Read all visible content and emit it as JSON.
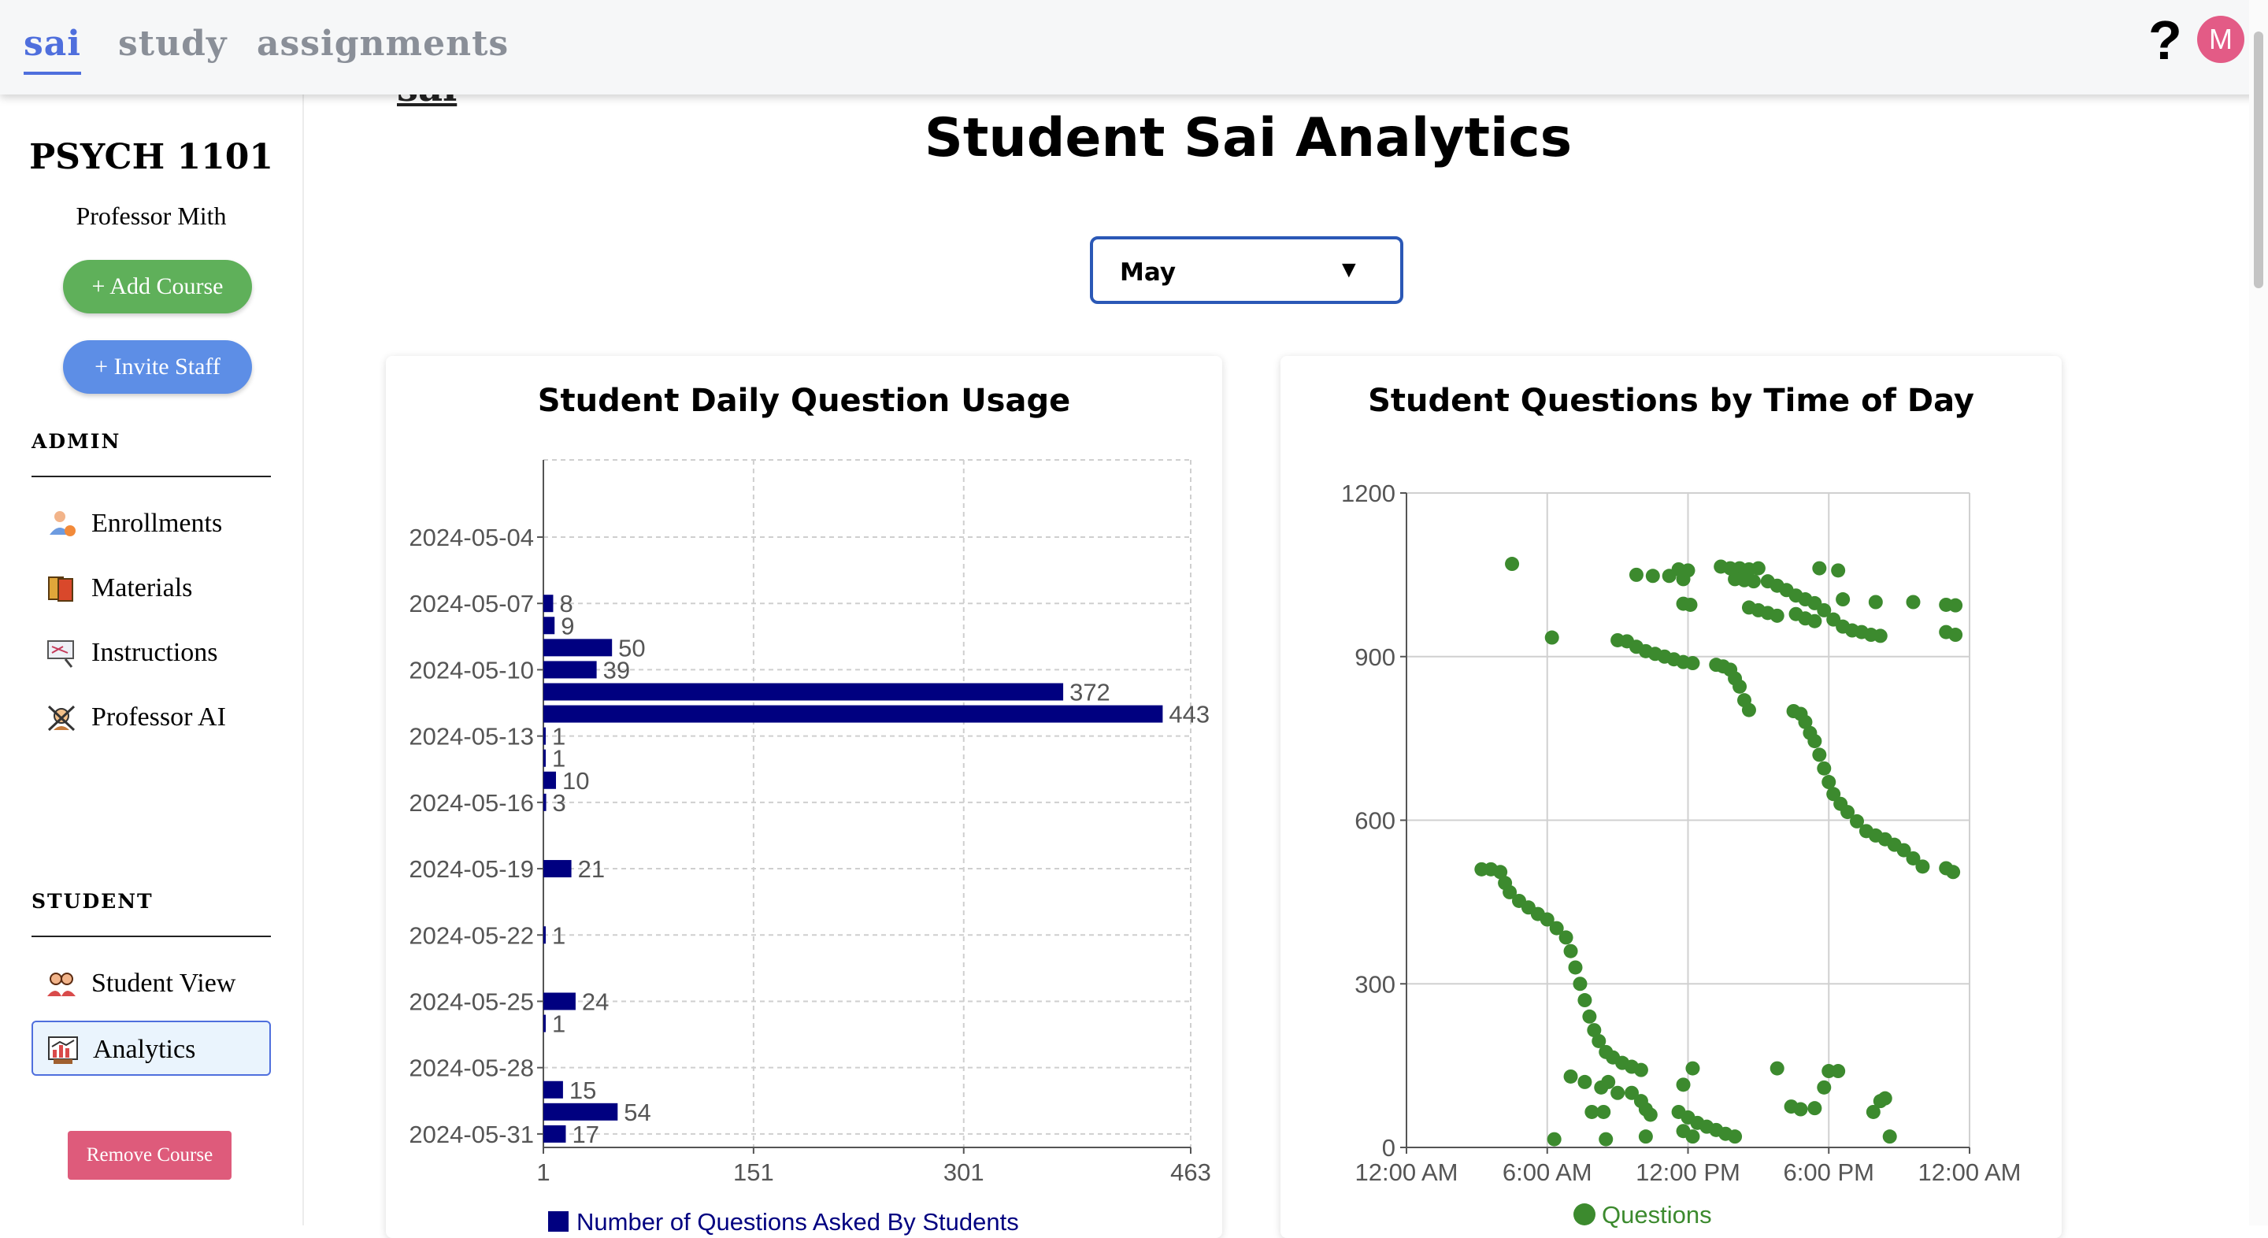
{
  "topnav": {
    "tabs": [
      {
        "label": "sai",
        "active": true
      },
      {
        "label": "study",
        "active": false
      },
      {
        "label": "assignments",
        "active": false
      }
    ],
    "help_icon": "question-mark-icon",
    "avatar_initial": "M"
  },
  "sidebar": {
    "course_title": "PSYCH 1101",
    "professor": "Professor Mith",
    "add_course_label": "+ Add Course",
    "invite_staff_label": "+ Invite Staff",
    "admin_label": "ADMIN",
    "admin_items": [
      {
        "label": "Enrollments",
        "icon": "enrollments-icon"
      },
      {
        "label": "Materials",
        "icon": "materials-icon"
      },
      {
        "label": "Instructions",
        "icon": "instructions-icon"
      },
      {
        "label": "Professor AI",
        "icon": "professor-ai-icon"
      }
    ],
    "student_label": "STUDENT",
    "student_items": [
      {
        "label": "Student View",
        "icon": "student-view-icon",
        "active": false
      },
      {
        "label": "Analytics",
        "icon": "analytics-icon",
        "active": true
      }
    ],
    "remove_course_label": "Remove Course"
  },
  "main": {
    "header_peek": "sai",
    "title": "Student Sai Analytics",
    "month_select": {
      "value": "May"
    }
  },
  "colors": {
    "accent": "#4f6fdd",
    "bar": "#000080",
    "scatter": "#3c8a2e",
    "add": "#5fb05a",
    "invite": "#5d8ee6",
    "remove": "#de5b7b"
  },
  "chart_data": [
    {
      "type": "bar",
      "orientation": "horizontal",
      "title": "Student Daily Question Usage",
      "categories": [
        "2024-05-04",
        "2024-05-07",
        "2024-05-08",
        "2024-05-09",
        "2024-05-10",
        "2024-05-11",
        "2024-05-12",
        "2024-05-13",
        "2024-05-14",
        "2024-05-15",
        "2024-05-16",
        "2024-05-19",
        "2024-05-22",
        "2024-05-25",
        "2024-05-26",
        "2024-05-29",
        "2024-05-30",
        "2024-05-31"
      ],
      "values": [
        null,
        8,
        9,
        50,
        39,
        372,
        443,
        1,
        1,
        10,
        3,
        21,
        1,
        24,
        1,
        15,
        54,
        17
      ],
      "ytick_labels": [
        "2024-05-04",
        "2024-05-07",
        "2024-05-10",
        "2024-05-13",
        "2024-05-16",
        "2024-05-19",
        "2024-05-22",
        "2024-05-25",
        "2024-05-28",
        "2024-05-31"
      ],
      "xticks": [
        1,
        151,
        301,
        463
      ],
      "xlim": [
        1,
        463
      ],
      "grid": true,
      "legend": {
        "label": "Number of Questions Asked By Students",
        "position": "bottom"
      }
    },
    {
      "type": "scatter",
      "title": "Student Questions by Time of Day",
      "xtick_labels": [
        "12:00 AM",
        "6:00 AM",
        "12:00 PM",
        "6:00 PM",
        "12:00 AM"
      ],
      "xlim_hours": [
        0,
        24
      ],
      "yticks": [
        0,
        300,
        600,
        900,
        1200
      ],
      "ylim": [
        0,
        1200
      ],
      "grid": true,
      "legend": {
        "label": "Questions",
        "position": "bottom"
      },
      "points": [
        [
          4.5,
          1070
        ],
        [
          6.2,
          935
        ],
        [
          9.0,
          930
        ],
        [
          9.4,
          928
        ],
        [
          9.8,
          918
        ],
        [
          10.2,
          910
        ],
        [
          10.6,
          905
        ],
        [
          11.0,
          900
        ],
        [
          11.4,
          895
        ],
        [
          11.8,
          890
        ],
        [
          12.2,
          888
        ],
        [
          9.8,
          1050
        ],
        [
          10.5,
          1048
        ],
        [
          11.2,
          1048
        ],
        [
          11.6,
          1060
        ],
        [
          11.8,
          1042
        ],
        [
          12.0,
          1058
        ],
        [
          11.8,
          997
        ],
        [
          12.1,
          995
        ],
        [
          13.4,
          1065
        ],
        [
          13.8,
          1062
        ],
        [
          14.2,
          1062
        ],
        [
          14.6,
          1060
        ],
        [
          15.0,
          1062
        ],
        [
          14.0,
          1042
        ],
        [
          14.4,
          1040
        ],
        [
          14.8,
          1038
        ],
        [
          15.4,
          1038
        ],
        [
          15.8,
          1030
        ],
        [
          16.2,
          1022
        ],
        [
          16.6,
          1012
        ],
        [
          17.0,
          1005
        ],
        [
          17.4,
          998
        ],
        [
          14.6,
          990
        ],
        [
          15.0,
          985
        ],
        [
          15.4,
          980
        ],
        [
          15.8,
          975
        ],
        [
          16.6,
          978
        ],
        [
          17.0,
          970
        ],
        [
          17.4,
          965
        ],
        [
          17.8,
          985
        ],
        [
          18.2,
          968
        ],
        [
          18.6,
          955
        ],
        [
          19.0,
          948
        ],
        [
          19.4,
          945
        ],
        [
          19.8,
          940
        ],
        [
          20.2,
          938
        ],
        [
          23.0,
          945
        ],
        [
          23.4,
          940
        ],
        [
          17.6,
          1062
        ],
        [
          18.4,
          1058
        ],
        [
          18.6,
          1005
        ],
        [
          20.0,
          1000
        ],
        [
          21.6,
          1000
        ],
        [
          23.0,
          995
        ],
        [
          23.4,
          994
        ],
        [
          13.2,
          885
        ],
        [
          13.5,
          882
        ],
        [
          13.8,
          876
        ],
        [
          14.0,
          860
        ],
        [
          14.2,
          845
        ],
        [
          14.4,
          820
        ],
        [
          14.6,
          802
        ],
        [
          16.5,
          800
        ],
        [
          16.8,
          795
        ],
        [
          17.0,
          780
        ],
        [
          17.2,
          760
        ],
        [
          17.4,
          745
        ],
        [
          17.6,
          720
        ],
        [
          17.8,
          695
        ],
        [
          18.0,
          670
        ],
        [
          18.2,
          648
        ],
        [
          18.5,
          630
        ],
        [
          18.8,
          615
        ],
        [
          19.2,
          598
        ],
        [
          19.6,
          580
        ],
        [
          20.0,
          572
        ],
        [
          20.4,
          565
        ],
        [
          20.8,
          555
        ],
        [
          21.2,
          545
        ],
        [
          21.6,
          530
        ],
        [
          22.0,
          515
        ],
        [
          23.0,
          512
        ],
        [
          23.3,
          505
        ],
        [
          3.2,
          510
        ],
        [
          3.6,
          510
        ],
        [
          4.0,
          505
        ],
        [
          4.2,
          485
        ],
        [
          4.4,
          468
        ],
        [
          4.8,
          452
        ],
        [
          5.2,
          440
        ],
        [
          5.6,
          428
        ],
        [
          6.0,
          418
        ],
        [
          6.4,
          402
        ],
        [
          6.8,
          385
        ],
        [
          7.0,
          360
        ],
        [
          7.2,
          330
        ],
        [
          7.4,
          300
        ],
        [
          7.6,
          270
        ],
        [
          7.8,
          240
        ],
        [
          8.0,
          215
        ],
        [
          8.2,
          195
        ],
        [
          8.5,
          175
        ],
        [
          8.8,
          165
        ],
        [
          9.2,
          155
        ],
        [
          9.6,
          148
        ],
        [
          10.0,
          142
        ],
        [
          7.0,
          130
        ],
        [
          7.6,
          120
        ],
        [
          8.3,
          110
        ],
        [
          8.6,
          120
        ],
        [
          9.6,
          100
        ],
        [
          10.0,
          85
        ],
        [
          10.2,
          70
        ],
        [
          10.4,
          60
        ],
        [
          7.9,
          65
        ],
        [
          8.4,
          65
        ],
        [
          11.8,
          115
        ],
        [
          12.2,
          145
        ],
        [
          11.6,
          65
        ],
        [
          12.0,
          55
        ],
        [
          12.4,
          45
        ],
        [
          12.8,
          38
        ],
        [
          13.2,
          32
        ],
        [
          13.6,
          25
        ],
        [
          14.0,
          20
        ],
        [
          10.2,
          20
        ],
        [
          11.8,
          30
        ],
        [
          12.2,
          20
        ],
        [
          6.3,
          15
        ],
        [
          8.5,
          15
        ],
        [
          9.0,
          100
        ],
        [
          15.8,
          145
        ],
        [
          16.4,
          75
        ],
        [
          16.8,
          70
        ],
        [
          17.4,
          72
        ],
        [
          18.0,
          140
        ],
        [
          18.4,
          140
        ],
        [
          17.8,
          110
        ],
        [
          19.9,
          65
        ],
        [
          20.2,
          85
        ],
        [
          20.4,
          90
        ],
        [
          20.6,
          20
        ]
      ]
    }
  ]
}
